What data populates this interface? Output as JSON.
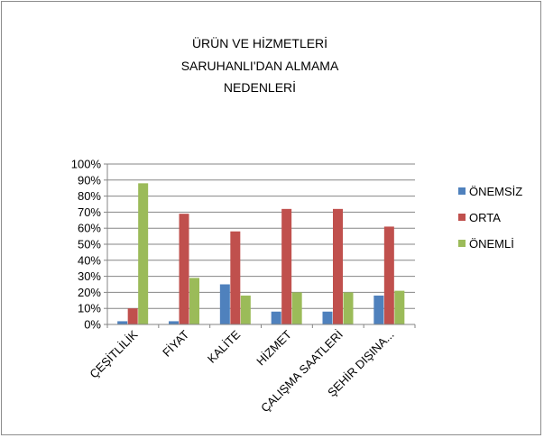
{
  "chart_data": {
    "type": "bar",
    "title_lines": [
      "ÜRÜN VE HİZMETLERİ",
      "SARUHANLI'DAN ALMAMA",
      "NEDENLERİ"
    ],
    "categories": [
      "ÇEŞİTLİLİK",
      "FİYAT",
      "KALİTE",
      "HİZMET",
      "ÇALIŞMA SAATLERİ",
      "ŞEHİR DIŞINA..."
    ],
    "series": [
      {
        "name": "ÖNEMSİZ",
        "color": "#4f81bd",
        "values": [
          2,
          2,
          25,
          8,
          8,
          18
        ]
      },
      {
        "name": "ORTA",
        "color": "#c0504d",
        "values": [
          10,
          69,
          58,
          72,
          72,
          61
        ]
      },
      {
        "name": "ÖNEMLİ",
        "color": "#9bbb59",
        "values": [
          88,
          29,
          18,
          20,
          20,
          21
        ]
      }
    ],
    "ylim": [
      0,
      100
    ],
    "yticks": [
      "0%",
      "10%",
      "20%",
      "30%",
      "40%",
      "50%",
      "60%",
      "70%",
      "80%",
      "90%",
      "100%"
    ],
    "grid": true,
    "legend_position": "right"
  }
}
